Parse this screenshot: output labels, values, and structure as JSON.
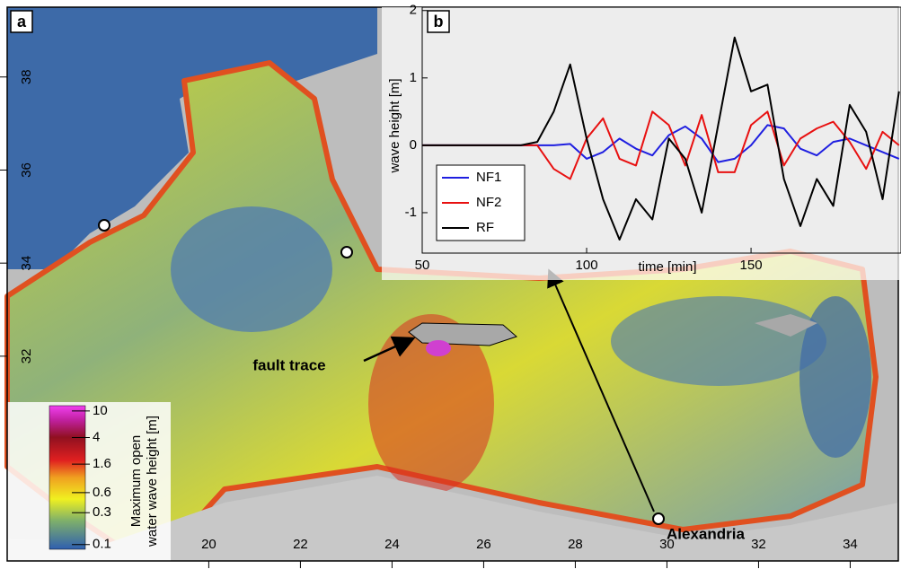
{
  "map": {
    "panel_label": "a",
    "xlim": [
      15.6,
      35.05
    ],
    "xticks": [
      20,
      22,
      24,
      26,
      28,
      30,
      32,
      34
    ],
    "ylim": [
      27.6,
      39.5
    ],
    "yticks": [
      32,
      34,
      36,
      38
    ],
    "labels": [
      "fault trace",
      "Alexandria"
    ],
    "colorbar": {
      "title": [
        "Maximum open",
        "water wave height [m]"
      ],
      "lim": [
        0.085,
        12
      ],
      "log": true,
      "ticks": [
        10,
        4,
        1.6,
        0.6,
        0.3,
        0.1
      ]
    }
  },
  "chart_data": {
    "type": "line",
    "panel_label": "b",
    "xlabel": "time [min]",
    "ylabel": "wave height [m]",
    "x": [
      50,
      55,
      60,
      65,
      70,
      75,
      80,
      85,
      90,
      95,
      100,
      105,
      110,
      115,
      120,
      125,
      130,
      135,
      140,
      145,
      150,
      155,
      160,
      165,
      170,
      175,
      180,
      185,
      190,
      195
    ],
    "series": [
      {
        "name": "NF1",
        "color": "#1f1fe0",
        "values": [
          0,
          0,
          0,
          0,
          0,
          0,
          0,
          0,
          0,
          0.02,
          -0.2,
          -0.1,
          0.1,
          -0.05,
          -0.15,
          0.15,
          0.28,
          0.1,
          -0.25,
          -0.2,
          0.0,
          0.3,
          0.25,
          -0.05,
          -0.15,
          0.05,
          0.1,
          0.0,
          -0.1,
          -0.2
        ]
      },
      {
        "name": "NF2",
        "color": "#e81010",
        "values": [
          0,
          0,
          0,
          0,
          0,
          0,
          0,
          0,
          -0.35,
          -0.5,
          0.1,
          0.4,
          -0.2,
          -0.3,
          0.5,
          0.3,
          -0.3,
          0.45,
          -0.4,
          -0.4,
          0.3,
          0.5,
          -0.3,
          0.1,
          0.25,
          0.35,
          0.05,
          -0.35,
          0.2,
          0.0
        ]
      },
      {
        "name": "RF",
        "color": "#000000",
        "values": [
          0,
          0,
          0,
          0,
          0,
          0,
          0,
          0.05,
          0.5,
          1.2,
          0.1,
          -0.8,
          -1.4,
          -0.8,
          -1.1,
          0.1,
          -0.2,
          -1.0,
          0.3,
          1.6,
          0.8,
          0.9,
          -0.5,
          -1.2,
          -0.5,
          -0.9,
          0.6,
          0.2,
          -0.8,
          0.8
        ]
      }
    ],
    "xlim": [
      50,
      195.6
    ],
    "xticks": [
      50,
      100,
      150
    ],
    "ylim": [
      -1.6,
      2.05
    ],
    "yticks": [
      -1,
      0,
      1,
      2
    ]
  }
}
